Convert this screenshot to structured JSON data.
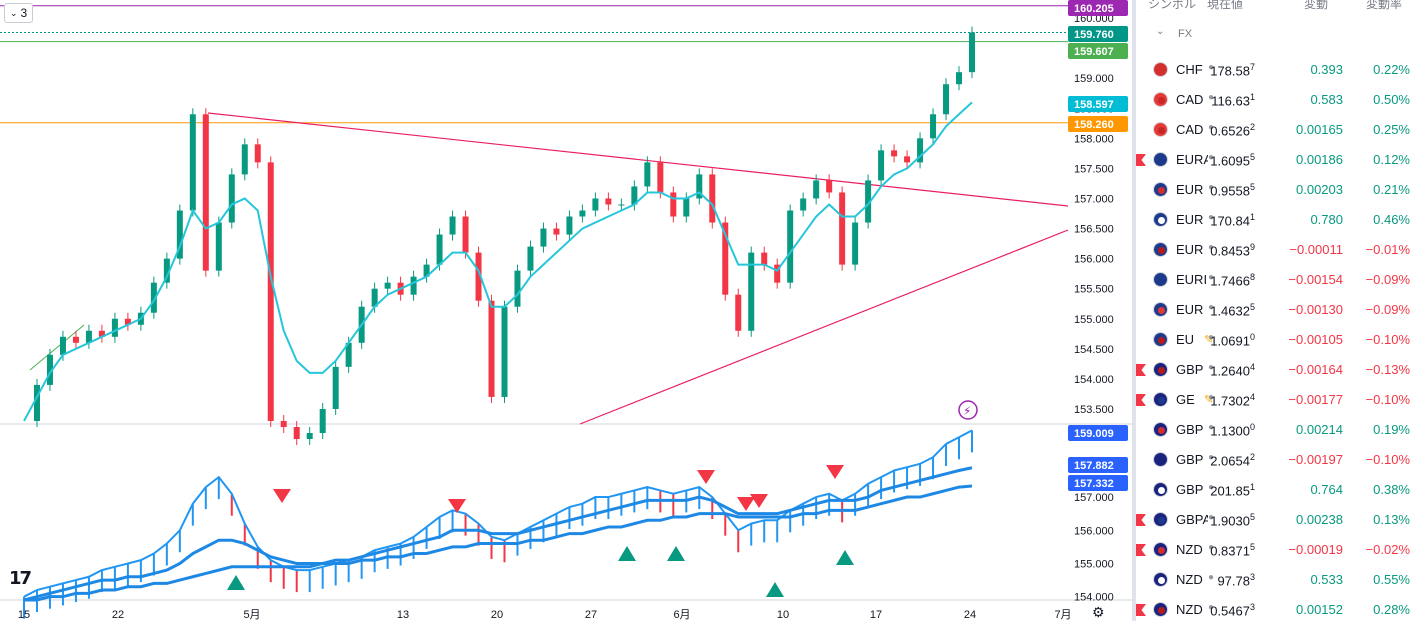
{
  "toolbar": {
    "badge_value": "3"
  },
  "chart_data": [
    {
      "type": "line",
      "panel": "price",
      "ylim": [
        153.25,
        160.3
      ],
      "y_ticks": [
        "160.000",
        "159.500",
        "159.000",
        "158.500",
        "158.000",
        "157.500",
        "157.000",
        "156.500",
        "156.000",
        "155.500",
        "155.000",
        "154.500",
        "154.000",
        "153.500"
      ],
      "x_ticks": [
        "15",
        "22",
        "5月",
        "13",
        "20",
        "27",
        "6月",
        "10",
        "17",
        "24",
        "7月"
      ],
      "price_labels": [
        {
          "value": "160.205",
          "color": "#9c27b0"
        },
        {
          "value": "159.760",
          "color": "#009688"
        },
        {
          "value": "159.607",
          "color": "#4caf50"
        },
        {
          "value": "158.597",
          "color": "#00bcd4"
        },
        {
          "value": "158.260",
          "color": "#ff9800"
        }
      ],
      "series": [
        {
          "values": [
            153.3,
            153.9,
            154.4,
            154.7,
            154.6,
            154.8,
            154.7,
            155.0,
            154.9,
            155.1,
            155.6,
            156.0,
            156.8,
            158.4,
            155.8,
            156.6,
            157.4,
            157.9,
            157.6,
            153.3,
            153.2,
            153.0,
            153.1,
            153.5,
            154.2,
            154.6,
            155.2,
            155.5,
            155.6,
            155.4,
            155.7,
            155.9,
            156.4,
            156.7,
            156.1,
            155.3,
            153.7,
            155.2,
            155.8,
            156.2,
            156.5,
            156.4,
            156.7,
            156.8,
            157.0,
            156.9,
            156.9,
            157.2,
            157.6,
            157.1,
            156.7,
            157.0,
            157.4,
            156.6,
            155.4,
            154.8,
            156.1,
            155.9,
            155.6,
            156.8,
            157.0,
            157.3,
            157.1,
            155.9,
            156.6,
            157.3,
            157.8,
            157.7,
            157.6,
            158.0,
            158.4,
            158.9,
            159.1,
            159.76
          ]
        },
        {
          "values": [
            153.3,
            153.7,
            154.1,
            154.4,
            154.5,
            154.6,
            154.7,
            154.8,
            154.9,
            155.0,
            155.3,
            155.7,
            156.2,
            156.8,
            156.5,
            156.6,
            156.9,
            157.0,
            156.8,
            155.7,
            154.8,
            154.3,
            154.1,
            154.1,
            154.3,
            154.6,
            154.9,
            155.2,
            155.4,
            155.5,
            155.6,
            155.7,
            155.9,
            156.1,
            156.1,
            155.8,
            155.2,
            155.2,
            155.4,
            155.7,
            155.9,
            156.1,
            156.3,
            156.5,
            156.6,
            156.7,
            156.8,
            156.9,
            157.1,
            157.1,
            157.0,
            157.0,
            157.1,
            156.9,
            156.4,
            155.9,
            155.9,
            155.9,
            155.8,
            156.1,
            156.4,
            156.7,
            156.9,
            156.7,
            156.7,
            156.9,
            157.2,
            157.4,
            157.5,
            157.7,
            157.9,
            158.2,
            158.4,
            158.597
          ]
        }
      ]
    },
    {
      "type": "line",
      "panel": "indicator",
      "ylim": [
        153.9,
        159.2
      ],
      "y_ticks": [
        "157.000",
        "156.000",
        "155.000",
        "154.000"
      ],
      "value_labels": [
        {
          "value": "159.009",
          "color": "#2962ff"
        },
        {
          "value": "157.882",
          "color": "#2962ff"
        },
        {
          "value": "157.332",
          "color": "#2962ff"
        }
      ],
      "series": [
        {
          "values": [
            154.0,
            154.2,
            154.3,
            154.4,
            154.5,
            154.6,
            154.8,
            154.9,
            155.0,
            155.1,
            155.3,
            155.6,
            156.0,
            156.8,
            157.3,
            157.6,
            157.1,
            156.2,
            155.5,
            155.1,
            154.9,
            154.8,
            154.8,
            154.9,
            155.0,
            155.1,
            155.2,
            155.4,
            155.5,
            155.6,
            155.8,
            156.1,
            156.4,
            156.6,
            156.5,
            156.2,
            155.8,
            155.7,
            155.9,
            156.1,
            156.3,
            156.5,
            156.7,
            156.8,
            157.0,
            157.0,
            157.1,
            157.2,
            157.3,
            157.2,
            157.1,
            157.2,
            157.3,
            157.0,
            156.5,
            156.0,
            156.2,
            156.3,
            156.3,
            156.6,
            156.8,
            157.0,
            157.1,
            156.9,
            157.1,
            157.4,
            157.6,
            157.8,
            157.9,
            158.0,
            158.2,
            158.6,
            158.8,
            159.009
          ]
        },
        {
          "values": [
            153.9,
            154.0,
            154.1,
            154.2,
            154.3,
            154.4,
            154.5,
            154.5,
            154.6,
            154.6,
            154.7,
            154.8,
            155.0,
            155.3,
            155.5,
            155.7,
            155.7,
            155.6,
            155.4,
            155.2,
            155.1,
            155.0,
            155.0,
            155.0,
            155.1,
            155.1,
            155.2,
            155.3,
            155.4,
            155.5,
            155.6,
            155.7,
            155.8,
            156.0,
            156.0,
            156.0,
            155.9,
            155.9,
            155.9,
            156.0,
            156.1,
            156.2,
            156.3,
            156.4,
            156.5,
            156.6,
            156.7,
            156.8,
            156.9,
            156.9,
            156.9,
            156.9,
            157.0,
            156.9,
            156.7,
            156.5,
            156.5,
            156.5,
            156.5,
            156.6,
            156.7,
            156.8,
            156.9,
            156.9,
            156.9,
            157.0,
            157.2,
            157.3,
            157.4,
            157.5,
            157.6,
            157.7,
            157.8,
            157.882
          ]
        },
        {
          "values": [
            153.9,
            153.9,
            154.0,
            154.0,
            154.1,
            154.1,
            154.2,
            154.2,
            154.3,
            154.3,
            154.4,
            154.4,
            154.5,
            154.6,
            154.7,
            154.8,
            154.9,
            154.9,
            154.9,
            154.9,
            154.9,
            154.9,
            154.9,
            155.0,
            155.0,
            155.0,
            155.1,
            155.1,
            155.2,
            155.2,
            155.3,
            155.3,
            155.4,
            155.5,
            155.5,
            155.6,
            155.6,
            155.6,
            155.6,
            155.7,
            155.7,
            155.8,
            155.9,
            155.9,
            156.0,
            156.1,
            156.1,
            156.2,
            156.3,
            156.3,
            156.4,
            156.4,
            156.5,
            156.5,
            156.5,
            156.4,
            156.4,
            156.4,
            156.4,
            156.4,
            156.5,
            156.5,
            156.6,
            156.6,
            156.6,
            156.7,
            156.8,
            156.9,
            157.0,
            157.0,
            157.1,
            157.2,
            157.3,
            157.332
          ]
        }
      ]
    }
  ],
  "watchlist": {
    "headers": [
      "シンボル",
      "現在値",
      "変動",
      "変動率"
    ],
    "group_label": "FX",
    "rows": [
      {
        "symbol": "CHF",
        "price_main": "178.58",
        "price_pip": "7",
        "change": "0.393",
        "change_pct": "0.22%",
        "dir": "pos",
        "flagged": false,
        "c1": "#d32f2f",
        "c2": "#d32f2f"
      },
      {
        "symbol": "CAD",
        "price_main": "116.63",
        "price_pip": "1",
        "change": "0.583",
        "change_pct": "0.50%",
        "dir": "pos",
        "flagged": false,
        "c1": "#e53935",
        "c2": "#c62828"
      },
      {
        "symbol": "CAD",
        "price_main": "0.6526",
        "price_pip": "2",
        "change": "0.00165",
        "change_pct": "0.25%",
        "dir": "pos",
        "flagged": false,
        "c1": "#e53935",
        "c2": "#c62828"
      },
      {
        "symbol": "EURA",
        "price_main": "1.6095",
        "price_pip": "5",
        "change": "0.00186",
        "change_pct": "0.12%",
        "dir": "pos",
        "flagged": true,
        "c1": "#1e3a8a",
        "c2": "#1e3a8a"
      },
      {
        "symbol": "EUR",
        "price_main": "0.9558",
        "price_pip": "5",
        "change": "0.00203",
        "change_pct": "0.21%",
        "dir": "pos",
        "flagged": false,
        "c1": "#1e3a8a",
        "c2": "#d32f2f"
      },
      {
        "symbol": "EUR",
        "price_main": "170.84",
        "price_pip": "1",
        "change": "0.780",
        "change_pct": "0.46%",
        "dir": "pos",
        "flagged": false,
        "c1": "#1e3a8a",
        "c2": "#ffffff"
      },
      {
        "symbol": "EUR",
        "price_main": "0.8453",
        "price_pip": "9",
        "change": "−0.00011",
        "change_pct": "−0.01%",
        "dir": "neg",
        "flagged": false,
        "c1": "#1e3a8a",
        "c2": "#b71c1c"
      },
      {
        "symbol": "EURI",
        "price_main": "1.7466",
        "price_pip": "8",
        "change": "−0.00154",
        "change_pct": "−0.09%",
        "dir": "neg",
        "flagged": false,
        "c1": "#1e3a8a",
        "c2": "#1e3a8a"
      },
      {
        "symbol": "EUR",
        "price_main": "1.4632",
        "price_pip": "5",
        "change": "−0.00130",
        "change_pct": "−0.09%",
        "dir": "neg",
        "flagged": false,
        "c1": "#1e3a8a",
        "c2": "#e53935"
      },
      {
        "symbol": "EU",
        "price_main": "1.0691",
        "price_pip": "0",
        "change": "−0.00105",
        "change_pct": "−0.10%",
        "dir": "neg",
        "flagged": false,
        "edit": true,
        "c1": "#1e3a8a",
        "c2": "#b71c1c"
      },
      {
        "symbol": "GBP",
        "price_main": "1.2640",
        "price_pip": "4",
        "change": "−0.00164",
        "change_pct": "−0.13%",
        "dir": "neg",
        "flagged": true,
        "c1": "#1a237e",
        "c2": "#b71c1c"
      },
      {
        "symbol": "GE",
        "price_main": "1.7302",
        "price_pip": "4",
        "change": "−0.00177",
        "change_pct": "−0.10%",
        "dir": "neg",
        "flagged": true,
        "edit": true,
        "c1": "#1a237e",
        "c2": "#1e3a8a"
      },
      {
        "symbol": "GBP",
        "price_main": "1.1300",
        "price_pip": "0",
        "change": "0.00214",
        "change_pct": "0.19%",
        "dir": "pos",
        "flagged": false,
        "c1": "#1a237e",
        "c2": "#d32f2f"
      },
      {
        "symbol": "GBP",
        "price_main": "2.0654",
        "price_pip": "2",
        "change": "−0.00197",
        "change_pct": "−0.10%",
        "dir": "neg",
        "flagged": false,
        "c1": "#1a237e",
        "c2": "#1a237e"
      },
      {
        "symbol": "GBP",
        "price_main": "201.85",
        "price_pip": "1",
        "change": "0.764",
        "change_pct": "0.38%",
        "dir": "pos",
        "flagged": false,
        "c1": "#1a237e",
        "c2": "#ffffff"
      },
      {
        "symbol": "GBPA",
        "price_main": "1.9030",
        "price_pip": "5",
        "change": "0.00238",
        "change_pct": "0.13%",
        "dir": "pos",
        "flagged": true,
        "c1": "#1a237e",
        "c2": "#1e3a8a"
      },
      {
        "symbol": "NZD",
        "price_main": "0.8371",
        "price_pip": "5",
        "change": "−0.00019",
        "change_pct": "−0.02%",
        "dir": "neg",
        "flagged": true,
        "c1": "#1a237e",
        "c2": "#d32f2f"
      },
      {
        "symbol": "NZD",
        "price_main": "97.78",
        "price_pip": "3",
        "change": "0.533",
        "change_pct": "0.55%",
        "dir": "pos",
        "flagged": false,
        "c1": "#1a237e",
        "c2": "#ffffff"
      },
      {
        "symbol": "NZD",
        "price_main": "0.5467",
        "price_pip": "3",
        "change": "0.00152",
        "change_pct": "0.28%",
        "dir": "pos",
        "flagged": true,
        "c1": "#1a237e",
        "c2": "#b71c1c"
      }
    ]
  }
}
